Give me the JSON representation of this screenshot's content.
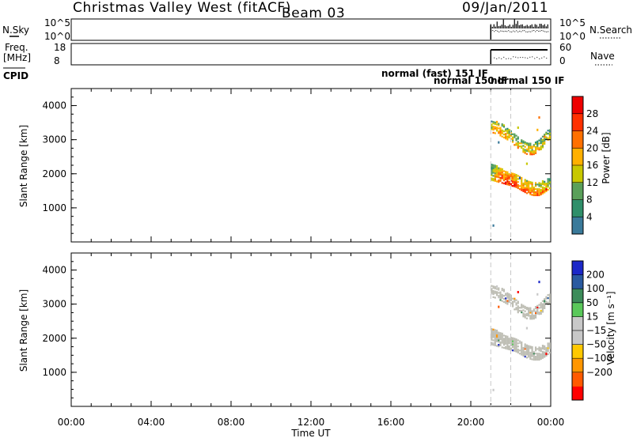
{
  "header": {
    "station": "Christmas Valley West (fitACF)",
    "beam": "Beam 03",
    "date": "09/Jan/2011"
  },
  "top_panels": {
    "nsky_label": "N.Sky",
    "nsky_ticks": [
      "10^5",
      "10^0"
    ],
    "nsearch_label": "N.Search",
    "freq_label": "Freq.",
    "freq_unit": "[MHz]",
    "freq_ticks": [
      "18",
      "8"
    ],
    "nave_label": "Nave",
    "nave_ticks": [
      "60",
      "0"
    ],
    "cpid_label": "CPID",
    "cpid_entries": [
      "normal (fast) 151 IF",
      "normal 150 IF",
      "normal 150 IF"
    ]
  },
  "colors": {
    "power": [
      "#1a1aff",
      "#2050c0",
      "#3a7a9a",
      "#2f8f6a",
      "#5aa05a",
      "#c8c800",
      "#ffb000",
      "#ff7000",
      "#ff3000",
      "#ee0000"
    ],
    "velocity": [
      "#ff0000",
      "#ff5a00",
      "#ff9600",
      "#ffc800",
      "#c8c8c8",
      "#c8c8c8",
      "#5ac85a",
      "#3c8c5a",
      "#2a5aa0",
      "#1c28c8"
    ],
    "ground_scatter": "#bebeb4"
  },
  "chart_data": [
    {
      "type": "heatmap",
      "name": "power",
      "ylabel": "Slant Range [km]",
      "xlabel": "",
      "x_ticks": [
        "00:00",
        "04:00",
        "08:00",
        "12:00",
        "16:00",
        "20:00",
        "00:00"
      ],
      "xlim_hours": [
        0,
        24
      ],
      "ylim_km": [
        0,
        4500
      ],
      "y_ticks": [
        1000,
        2000,
        3000,
        4000
      ],
      "colorbar_label": "Power [dB]",
      "colorbar_ticks": [
        "4",
        "8",
        "12",
        "16",
        "20",
        "24",
        "28"
      ],
      "colorbar_range": [
        0,
        32
      ],
      "data_start_hour": 21.0,
      "data_end_hour": 24.0,
      "echo_bands": [
        {
          "range_start_km": [
            1800,
            1750,
            1700,
            1650,
            1600,
            1500,
            1400,
            1350,
            1350,
            1450,
            1600
          ],
          "range_end_km": [
            2300,
            2200,
            2100,
            2050,
            2000,
            1900,
            1800,
            1750,
            1750,
            1800,
            1950
          ],
          "power_db": [
            18,
            26,
            28,
            28,
            27,
            26,
            25,
            25,
            24,
            22,
            20
          ]
        },
        {
          "range_start_km": [
            3200,
            3150,
            3050,
            2950,
            2800,
            2650,
            2550,
            2550,
            2650,
            2850,
            3050
          ],
          "range_end_km": [
            3550,
            3500,
            3450,
            3300,
            3150,
            3000,
            2900,
            2900,
            3000,
            3200,
            3400
          ],
          "power_db": [
            20,
            24,
            22,
            22,
            20,
            21,
            22,
            22,
            20,
            20,
            18
          ]
        }
      ]
    },
    {
      "type": "heatmap",
      "name": "velocity",
      "ylabel": "Slant Range [km]",
      "xlabel": "Time UT",
      "x_ticks": [
        "00:00",
        "04:00",
        "08:00",
        "12:00",
        "16:00",
        "20:00",
        "00:00"
      ],
      "xlim_hours": [
        0,
        24
      ],
      "ylim_km": [
        0,
        4500
      ],
      "y_ticks": [
        1000,
        2000,
        3000,
        4000
      ],
      "colorbar_label": "Velocity [m s⁻¹]",
      "colorbar_ticks": [
        "200",
        "100",
        "50",
        "15",
        "−15",
        "−50",
        "−100",
        "−200"
      ],
      "data_start_hour": 21.0,
      "data_end_hour": 24.0,
      "note": "mostly ground scatter (grey) in same bands as power"
    }
  ]
}
